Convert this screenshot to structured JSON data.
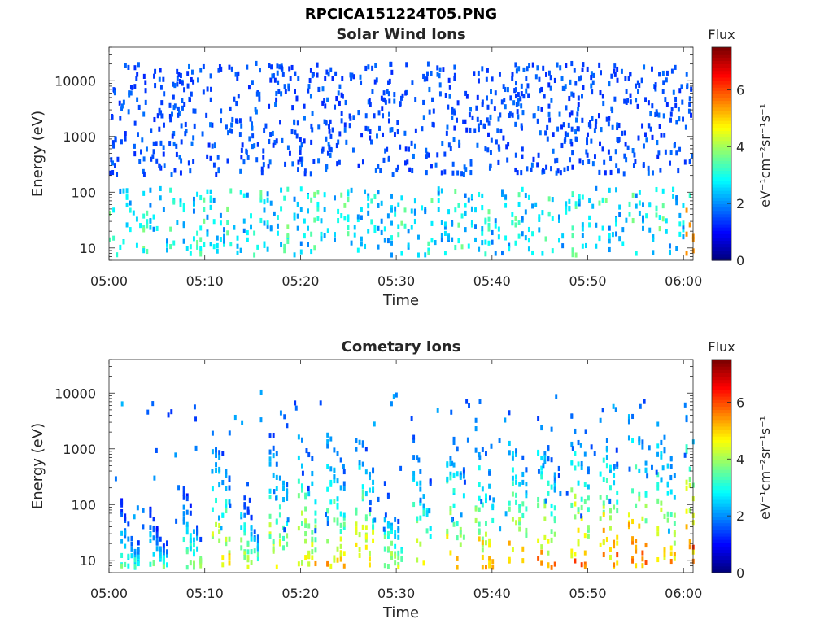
{
  "figure": {
    "filename": "RPCICA151224T05.PNG"
  },
  "chart_data": [
    {
      "type": "heatmap",
      "title": "Solar Wind Ions",
      "xlabel": "Time",
      "ylabel": "Energy (eV)",
      "x_ticks": [
        "05:00",
        "05:10",
        "05:20",
        "05:30",
        "05:40",
        "05:50",
        "06:00"
      ],
      "xlim": [
        "05:00",
        "06:01"
      ],
      "y_scale": "log",
      "y_ticks": [
        "10",
        "100",
        "1000",
        "10000"
      ],
      "ylim": [
        6,
        40000
      ],
      "colorbar": {
        "label": "Flux",
        "units": "eV⁻¹cm⁻²sr⁻¹s⁻¹",
        "ticks": [
          "0",
          "2",
          "4",
          "6"
        ],
        "range": [
          0,
          7.5
        ],
        "colormap": "jet"
      },
      "description_pattern": "sparse blue counts at 200-20000 eV, cyan-green bands at 10-100 eV with periodic enhancements about every 3 minutes; strongest yellow-orange near 06:00 at about 30 eV"
    },
    {
      "type": "heatmap",
      "title": "Cometary Ions",
      "xlabel": "Time",
      "ylabel": "Energy (eV)",
      "x_ticks": [
        "05:00",
        "05:10",
        "05:20",
        "05:30",
        "05:40",
        "05:50",
        "06:00"
      ],
      "xlim": [
        "05:00",
        "06:01"
      ],
      "y_scale": "log",
      "y_ticks": [
        "10",
        "100",
        "1000",
        "10000"
      ],
      "ylim": [
        6,
        40000
      ],
      "colorbar": {
        "label": "Flux",
        "units": "eV⁻¹cm⁻²sr⁻¹s⁻¹",
        "ticks": [
          "0",
          "2",
          "4",
          "6"
        ],
        "range": [
          0,
          7.5
        ],
        "colormap": "jet"
      },
      "bursts": [
        {
          "t": 1.5,
          "peak": 4.0,
          "top": 80
        },
        {
          "t": 4.5,
          "peak": 4.2,
          "top": 60
        },
        {
          "t": 8.0,
          "peak": 4.6,
          "top": 150
        },
        {
          "t": 11.0,
          "peak": 5.8,
          "top": 2000
        },
        {
          "t": 14.0,
          "peak": 5.2,
          "top": 150
        },
        {
          "t": 17.0,
          "peak": 5.4,
          "top": 2000
        },
        {
          "t": 20.0,
          "peak": 5.8,
          "top": 2500
        },
        {
          "t": 23.0,
          "peak": 5.8,
          "top": 2500
        },
        {
          "t": 26.0,
          "peak": 6.0,
          "top": 2500
        },
        {
          "t": 29.0,
          "peak": 5.0,
          "top": 200
        },
        {
          "t": 32.0,
          "peak": 5.2,
          "top": 1500
        },
        {
          "t": 35.5,
          "peak": 5.8,
          "top": 2500
        },
        {
          "t": 38.5,
          "peak": 6.0,
          "top": 2500
        },
        {
          "t": 42.0,
          "peak": 6.0,
          "top": 2500
        },
        {
          "t": 45.0,
          "peak": 6.2,
          "top": 2500
        },
        {
          "t": 48.5,
          "peak": 6.6,
          "top": 3000
        },
        {
          "t": 51.5,
          "peak": 6.6,
          "top": 3000
        },
        {
          "t": 54.5,
          "peak": 6.6,
          "top": 5000
        },
        {
          "t": 57.5,
          "peak": 6.4,
          "top": 3000
        },
        {
          "t": 60.5,
          "peak": 7.2,
          "top": 3000
        }
      ]
    }
  ]
}
